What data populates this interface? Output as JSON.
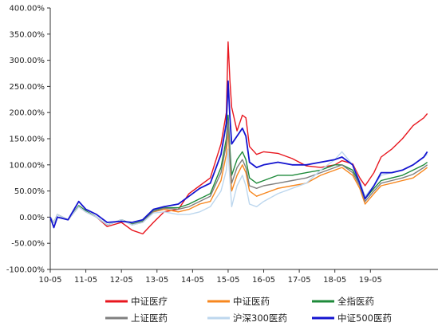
{
  "chart_data": {
    "type": "line",
    "title": "",
    "xlabel": "",
    "ylabel": "",
    "ylim": [
      -100,
      400
    ],
    "y_ticks": [
      "400.00%",
      "350.00%",
      "300.00%",
      "250.00%",
      "200.00%",
      "150.00%",
      "100.00%",
      "50.00%",
      "0.00%",
      "-50.00%",
      "-100.00%"
    ],
    "x_ticks": [
      "10-05",
      "11-05",
      "12-05",
      "13-05",
      "14-05",
      "15-05",
      "16-05",
      "17-05",
      "18-05",
      "19-05"
    ],
    "x_range": [
      "2010-05",
      "2020-04"
    ],
    "grid": false,
    "legend_position": "bottom",
    "series": [
      {
        "name": "中证医疗",
        "color": "#e8161e",
        "points": [
          [
            0,
            0
          ],
          [
            0.1,
            -10
          ],
          [
            0.2,
            5
          ],
          [
            0.5,
            -5
          ],
          [
            0.8,
            20
          ],
          [
            1.0,
            10
          ],
          [
            1.3,
            0
          ],
          [
            1.6,
            -18
          ],
          [
            2.0,
            -10
          ],
          [
            2.3,
            -25
          ],
          [
            2.6,
            -32
          ],
          [
            2.9,
            -10
          ],
          [
            3.2,
            10
          ],
          [
            3.6,
            15
          ],
          [
            3.9,
            45
          ],
          [
            4.2,
            60
          ],
          [
            4.5,
            75
          ],
          [
            4.8,
            140
          ],
          [
            4.95,
            200
          ],
          [
            5.0,
            335
          ],
          [
            5.05,
            260
          ],
          [
            5.1,
            210
          ],
          [
            5.25,
            165
          ],
          [
            5.4,
            195
          ],
          [
            5.5,
            190
          ],
          [
            5.6,
            135
          ],
          [
            5.8,
            120
          ],
          [
            6.0,
            125
          ],
          [
            6.4,
            122
          ],
          [
            6.8,
            112
          ],
          [
            7.2,
            98
          ],
          [
            7.6,
            95
          ],
          [
            8.0,
            100
          ],
          [
            8.2,
            108
          ],
          [
            8.5,
            102
          ],
          [
            8.7,
            75
          ],
          [
            8.85,
            60
          ],
          [
            9.1,
            85
          ],
          [
            9.3,
            115
          ],
          [
            9.6,
            130
          ],
          [
            9.9,
            150
          ],
          [
            10.2,
            175
          ],
          [
            10.5,
            190
          ],
          [
            10.6,
            198
          ]
        ]
      },
      {
        "name": "中证医药",
        "color": "#f7871f",
        "points": [
          [
            0,
            0
          ],
          [
            0.1,
            -10
          ],
          [
            0.2,
            5
          ],
          [
            0.5,
            -5
          ],
          [
            0.8,
            22
          ],
          [
            1.0,
            12
          ],
          [
            1.3,
            0
          ],
          [
            1.6,
            -15
          ],
          [
            2.0,
            -5
          ],
          [
            2.3,
            -15
          ],
          [
            2.6,
            -10
          ],
          [
            2.9,
            10
          ],
          [
            3.2,
            15
          ],
          [
            3.6,
            10
          ],
          [
            3.9,
            15
          ],
          [
            4.2,
            25
          ],
          [
            4.5,
            30
          ],
          [
            4.8,
            70
          ],
          [
            4.95,
            120
          ],
          [
            5.0,
            170
          ],
          [
            5.05,
            100
          ],
          [
            5.1,
            50
          ],
          [
            5.25,
            80
          ],
          [
            5.4,
            100
          ],
          [
            5.5,
            85
          ],
          [
            5.6,
            50
          ],
          [
            5.8,
            40
          ],
          [
            6.0,
            45
          ],
          [
            6.4,
            55
          ],
          [
            6.8,
            60
          ],
          [
            7.2,
            65
          ],
          [
            7.6,
            80
          ],
          [
            8.0,
            90
          ],
          [
            8.2,
            95
          ],
          [
            8.5,
            80
          ],
          [
            8.7,
            55
          ],
          [
            8.85,
            25
          ],
          [
            9.1,
            45
          ],
          [
            9.3,
            60
          ],
          [
            9.6,
            65
          ],
          [
            9.9,
            70
          ],
          [
            10.2,
            75
          ],
          [
            10.5,
            90
          ],
          [
            10.6,
            95
          ]
        ]
      },
      {
        "name": "全指医药",
        "color": "#1e8a3a",
        "points": [
          [
            0,
            0
          ],
          [
            0.1,
            -10
          ],
          [
            0.2,
            5
          ],
          [
            0.5,
            -5
          ],
          [
            0.8,
            22
          ],
          [
            1.0,
            12
          ],
          [
            1.3,
            0
          ],
          [
            1.6,
            -15
          ],
          [
            2.0,
            -5
          ],
          [
            2.3,
            -13
          ],
          [
            2.6,
            -8
          ],
          [
            2.9,
            12
          ],
          [
            3.2,
            18
          ],
          [
            3.6,
            18
          ],
          [
            3.9,
            25
          ],
          [
            4.2,
            35
          ],
          [
            4.5,
            45
          ],
          [
            4.8,
            95
          ],
          [
            4.95,
            150
          ],
          [
            5.0,
            195
          ],
          [
            5.05,
            130
          ],
          [
            5.1,
            80
          ],
          [
            5.25,
            110
          ],
          [
            5.4,
            125
          ],
          [
            5.5,
            110
          ],
          [
            5.6,
            75
          ],
          [
            5.8,
            65
          ],
          [
            6.0,
            70
          ],
          [
            6.4,
            80
          ],
          [
            6.8,
            80
          ],
          [
            7.2,
            85
          ],
          [
            7.6,
            90
          ],
          [
            8.0,
            100
          ],
          [
            8.2,
            100
          ],
          [
            8.5,
            90
          ],
          [
            8.7,
            65
          ],
          [
            8.85,
            35
          ],
          [
            9.1,
            55
          ],
          [
            9.3,
            70
          ],
          [
            9.6,
            75
          ],
          [
            9.9,
            80
          ],
          [
            10.2,
            90
          ],
          [
            10.5,
            100
          ],
          [
            10.6,
            105
          ]
        ]
      },
      {
        "name": "上证医药",
        "color": "#7f7f7f",
        "points": [
          [
            0,
            0
          ],
          [
            0.1,
            -10
          ],
          [
            0.2,
            5
          ],
          [
            0.5,
            -5
          ],
          [
            0.8,
            20
          ],
          [
            1.0,
            10
          ],
          [
            1.3,
            0
          ],
          [
            1.6,
            -15
          ],
          [
            2.0,
            -5
          ],
          [
            2.3,
            -14
          ],
          [
            2.6,
            -9
          ],
          [
            2.9,
            11
          ],
          [
            3.2,
            17
          ],
          [
            3.6,
            15
          ],
          [
            3.9,
            20
          ],
          [
            4.2,
            30
          ],
          [
            4.5,
            40
          ],
          [
            4.8,
            85
          ],
          [
            4.95,
            140
          ],
          [
            5.0,
            185
          ],
          [
            5.05,
            115
          ],
          [
            5.1,
            65
          ],
          [
            5.25,
            95
          ],
          [
            5.4,
            110
          ],
          [
            5.5,
            95
          ],
          [
            5.6,
            60
          ],
          [
            5.8,
            55
          ],
          [
            6.0,
            60
          ],
          [
            6.4,
            65
          ],
          [
            6.8,
            70
          ],
          [
            7.2,
            75
          ],
          [
            7.6,
            85
          ],
          [
            8.0,
            95
          ],
          [
            8.2,
            100
          ],
          [
            8.5,
            85
          ],
          [
            8.7,
            60
          ],
          [
            8.85,
            30
          ],
          [
            9.1,
            50
          ],
          [
            9.3,
            65
          ],
          [
            9.6,
            70
          ],
          [
            9.9,
            75
          ],
          [
            10.2,
            82
          ],
          [
            10.5,
            95
          ],
          [
            10.6,
            100
          ]
        ]
      },
      {
        "name": "沪深300医药",
        "color": "#bdd7ee",
        "points": [
          [
            0,
            0
          ],
          [
            0.1,
            -10
          ],
          [
            0.2,
            5
          ],
          [
            0.5,
            -5
          ],
          [
            0.8,
            20
          ],
          [
            1.0,
            10
          ],
          [
            1.3,
            0
          ],
          [
            1.6,
            -15
          ],
          [
            2.0,
            -5
          ],
          [
            2.3,
            -15
          ],
          [
            2.6,
            -10
          ],
          [
            2.9,
            8
          ],
          [
            3.2,
            10
          ],
          [
            3.6,
            5
          ],
          [
            3.9,
            5
          ],
          [
            4.2,
            10
          ],
          [
            4.5,
            20
          ],
          [
            4.8,
            50
          ],
          [
            4.95,
            90
          ],
          [
            5.0,
            130
          ],
          [
            5.05,
            70
          ],
          [
            5.1,
            20
          ],
          [
            5.25,
            60
          ],
          [
            5.4,
            80
          ],
          [
            5.5,
            60
          ],
          [
            5.6,
            25
          ],
          [
            5.8,
            20
          ],
          [
            6.0,
            30
          ],
          [
            6.4,
            45
          ],
          [
            6.8,
            55
          ],
          [
            7.2,
            65
          ],
          [
            7.6,
            90
          ],
          [
            8.0,
            110
          ],
          [
            8.2,
            125
          ],
          [
            8.5,
            100
          ],
          [
            8.7,
            70
          ],
          [
            8.85,
            40
          ],
          [
            9.1,
            60
          ],
          [
            9.3,
            80
          ],
          [
            9.6,
            85
          ],
          [
            9.9,
            90
          ],
          [
            10.2,
            100
          ],
          [
            10.5,
            115
          ],
          [
            10.6,
            120
          ]
        ]
      },
      {
        "name": "中证500医药",
        "color": "#1414d0",
        "points": [
          [
            0,
            0
          ],
          [
            0.1,
            -20
          ],
          [
            0.2,
            0
          ],
          [
            0.5,
            -5
          ],
          [
            0.8,
            30
          ],
          [
            1.0,
            15
          ],
          [
            1.3,
            5
          ],
          [
            1.6,
            -10
          ],
          [
            2.0,
            -8
          ],
          [
            2.3,
            -10
          ],
          [
            2.6,
            -5
          ],
          [
            2.9,
            15
          ],
          [
            3.2,
            20
          ],
          [
            3.6,
            25
          ],
          [
            3.9,
            40
          ],
          [
            4.2,
            55
          ],
          [
            4.5,
            65
          ],
          [
            4.8,
            120
          ],
          [
            4.95,
            180
          ],
          [
            5.0,
            260
          ],
          [
            5.05,
            190
          ],
          [
            5.1,
            140
          ],
          [
            5.25,
            155
          ],
          [
            5.4,
            170
          ],
          [
            5.5,
            155
          ],
          [
            5.6,
            105
          ],
          [
            5.8,
            95
          ],
          [
            6.0,
            100
          ],
          [
            6.4,
            105
          ],
          [
            6.8,
            100
          ],
          [
            7.2,
            100
          ],
          [
            7.6,
            105
          ],
          [
            8.0,
            110
          ],
          [
            8.2,
            115
          ],
          [
            8.5,
            100
          ],
          [
            8.7,
            65
          ],
          [
            8.85,
            35
          ],
          [
            9.1,
            60
          ],
          [
            9.3,
            85
          ],
          [
            9.6,
            85
          ],
          [
            9.9,
            90
          ],
          [
            10.2,
            100
          ],
          [
            10.5,
            115
          ],
          [
            10.6,
            125
          ]
        ]
      }
    ]
  }
}
